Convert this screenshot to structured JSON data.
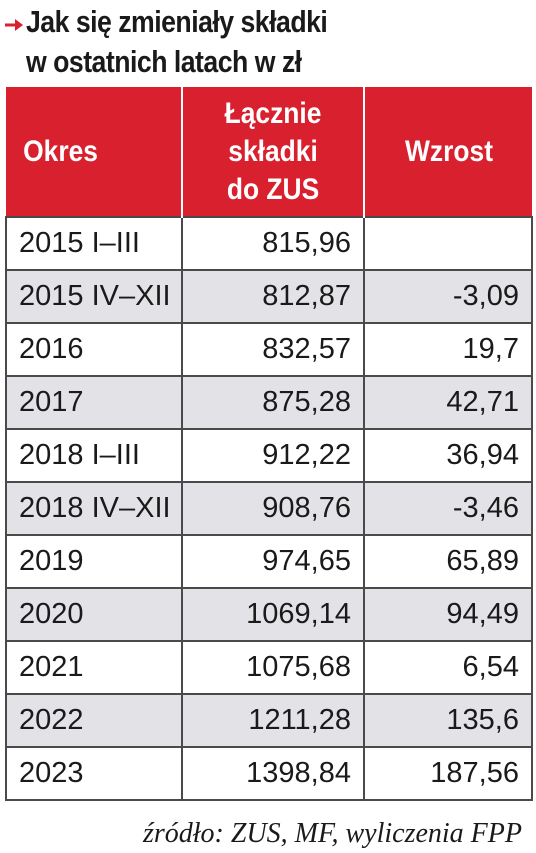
{
  "title": {
    "line1": "Jak się zmieniały składki",
    "line2": "w ostatnich latach w zł",
    "arrow_icon": "arrow-right-icon",
    "accent_color": "#d8202f"
  },
  "chart_data": {
    "type": "table",
    "columns": [
      "Okres",
      "Łącznie składki do ZUS",
      "Wzrost"
    ],
    "header_lines": [
      [
        "Okres"
      ],
      [
        "Łącznie",
        "składki",
        "do ZUS"
      ],
      [
        "Wzrost"
      ]
    ],
    "rows": [
      [
        "2015 I–III",
        "815,96",
        ""
      ],
      [
        "2015 IV–XII",
        "812,87",
        "-3,09"
      ],
      [
        "2016",
        "832,57",
        "19,7"
      ],
      [
        "2017",
        "875,28",
        "42,71"
      ],
      [
        "2018 I–III",
        "912,22",
        "36,94"
      ],
      [
        "2018 IV–XII",
        "908,76",
        "-3,46"
      ],
      [
        "2019",
        "974,65",
        "65,89"
      ],
      [
        "2020",
        "1069,14",
        "94,49"
      ],
      [
        "2021",
        "1075,68",
        "6,54"
      ],
      [
        "2022",
        "1211,28",
        "135,6"
      ],
      [
        "2023",
        "1398,84",
        "187,56"
      ]
    ],
    "header_color": "#d8202f",
    "stripe_color": "#e3e2e7"
  },
  "source": "źródło: ZUS, MF, wyliczenia FPP"
}
